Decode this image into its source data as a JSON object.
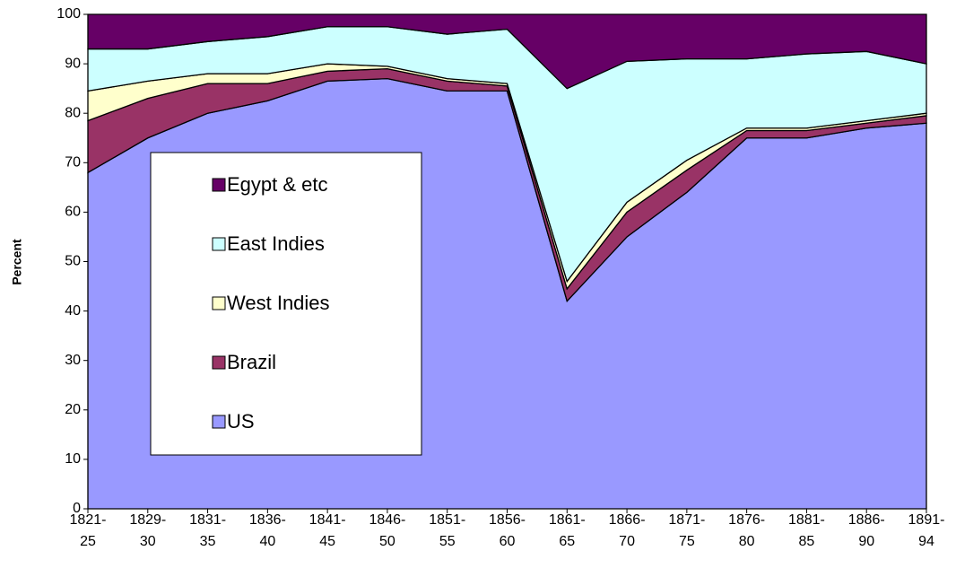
{
  "chart_data": {
    "type": "stacked_area",
    "y_label": "Percent",
    "categories": [
      "1821-25",
      "1829-30",
      "1831-35",
      "1836-40",
      "1841-45",
      "1846-50",
      "1851-55",
      "1856-60",
      "1861-65",
      "1866-70",
      "1871-75",
      "1876-80",
      "1881-85",
      "1886-90",
      "1891-94"
    ],
    "series": [
      {
        "name": "US",
        "color": "#9999ff",
        "values": [
          68,
          75,
          80,
          82.5,
          86.5,
          87,
          84.5,
          84.5,
          42,
          55,
          64,
          75,
          75,
          77,
          78
        ]
      },
      {
        "name": "Brazil",
        "color": "#993366",
        "values": [
          10.5,
          8,
          6,
          3.5,
          2,
          2,
          2,
          1,
          2.5,
          5,
          4.5,
          1.5,
          1.5,
          1,
          1.5
        ]
      },
      {
        "name": "West Indies",
        "color": "#ffffcc",
        "values": [
          6,
          3.5,
          2,
          2,
          1.5,
          0.5,
          0.5,
          0.5,
          1.5,
          2,
          2,
          0.5,
          0.5,
          0.5,
          0.5
        ]
      },
      {
        "name": "East Indies",
        "color": "#ccffff",
        "values": [
          8.5,
          6.5,
          6.5,
          7.5,
          7.5,
          8,
          9,
          11,
          39,
          28.5,
          20.5,
          14,
          15,
          14,
          10
        ]
      },
      {
        "name": "Egypt & etc",
        "color": "#660066",
        "values": [
          7,
          7,
          5.5,
          4.5,
          2.5,
          2.5,
          4,
          3,
          15,
          9.5,
          9,
          9,
          8,
          7.5,
          10
        ]
      }
    ],
    "ylim": [
      0,
      100
    ],
    "yticks": [
      0,
      10,
      20,
      30,
      40,
      50,
      60,
      70,
      80,
      90,
      100
    ]
  }
}
